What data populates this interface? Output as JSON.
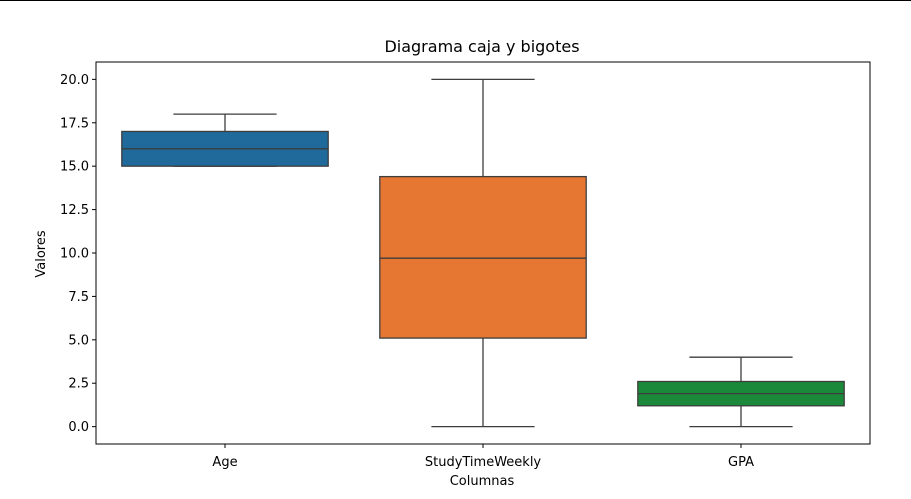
{
  "chart_data": {
    "type": "box",
    "title": "Diagrama caja y bigotes",
    "xlabel": "Columnas",
    "ylabel": "Valores",
    "ylim": [
      -1.0,
      21.0
    ],
    "yticks": [
      "0.0",
      "2.5",
      "5.0",
      "7.5",
      "10.0",
      "12.5",
      "15.0",
      "17.5",
      "20.0"
    ],
    "grid": false,
    "categories": [
      "Age",
      "StudyTimeWeekly",
      "GPA"
    ],
    "boxes": [
      {
        "label": "Age",
        "whisker_low": 15.0,
        "q1": 15.0,
        "median": 16.0,
        "q3": 17.0,
        "whisker_high": 18.0,
        "color": "#1f6a9a"
      },
      {
        "label": "StudyTimeWeekly",
        "whisker_low": 0.0,
        "q1": 5.1,
        "median": 9.7,
        "q3": 14.4,
        "whisker_high": 20.0,
        "color": "#e67733"
      },
      {
        "label": "GPA",
        "whisker_low": 0.0,
        "q1": 1.2,
        "median": 1.9,
        "q3": 2.6,
        "whisker_high": 4.0,
        "color": "#1a8a3a"
      }
    ]
  }
}
